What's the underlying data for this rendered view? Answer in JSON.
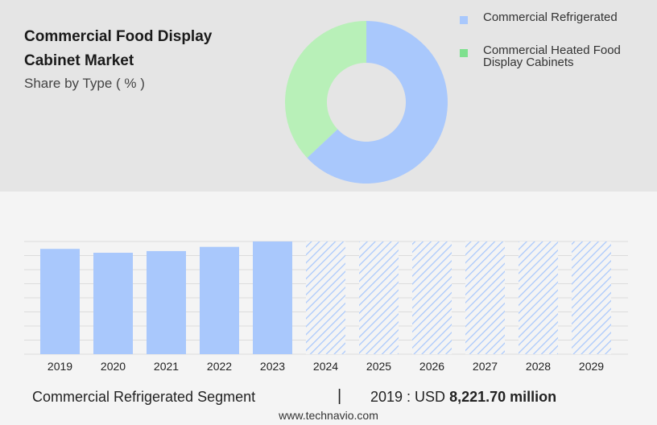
{
  "header": {
    "title": "Commercial Food Display Cabinet Market",
    "subtitle": "Share by Type ( % )"
  },
  "legend": [
    {
      "label": "Commercial Refrigerated",
      "color": "#a9c8fc"
    },
    {
      "label": "Commercial Heated Food Display Cabinets",
      "color": "#7fe08f"
    }
  ],
  "footer": {
    "segment": "Commercial Refrigerated Segment",
    "separator": "|",
    "stat_label": "2019 : USD",
    "stat_value": "8,221.70 million"
  },
  "site": "www.technavio.com",
  "chart_data": [
    {
      "type": "pie",
      "variant": "donut",
      "slices": [
        {
          "name": "Commercial Refrigerated",
          "value": 63,
          "color": "#a9c8fc"
        },
        {
          "name": "Commercial Heated Food Display Cabinets",
          "value": 37,
          "color": "#b8f0b8"
        }
      ]
    },
    {
      "type": "bar",
      "categories": [
        "2019",
        "2020",
        "2021",
        "2022",
        "2023",
        "2024",
        "2025",
        "2026",
        "2027",
        "2028",
        "2029"
      ],
      "values": [
        8221.7,
        7920,
        8050,
        8380,
        8800,
        null,
        null,
        null,
        null,
        null,
        null
      ],
      "forecast": [
        false,
        false,
        false,
        false,
        false,
        true,
        true,
        true,
        true,
        true,
        true
      ],
      "color": "#a9c8fc",
      "ylim": [
        0,
        8800
      ],
      "grid": true
    }
  ]
}
